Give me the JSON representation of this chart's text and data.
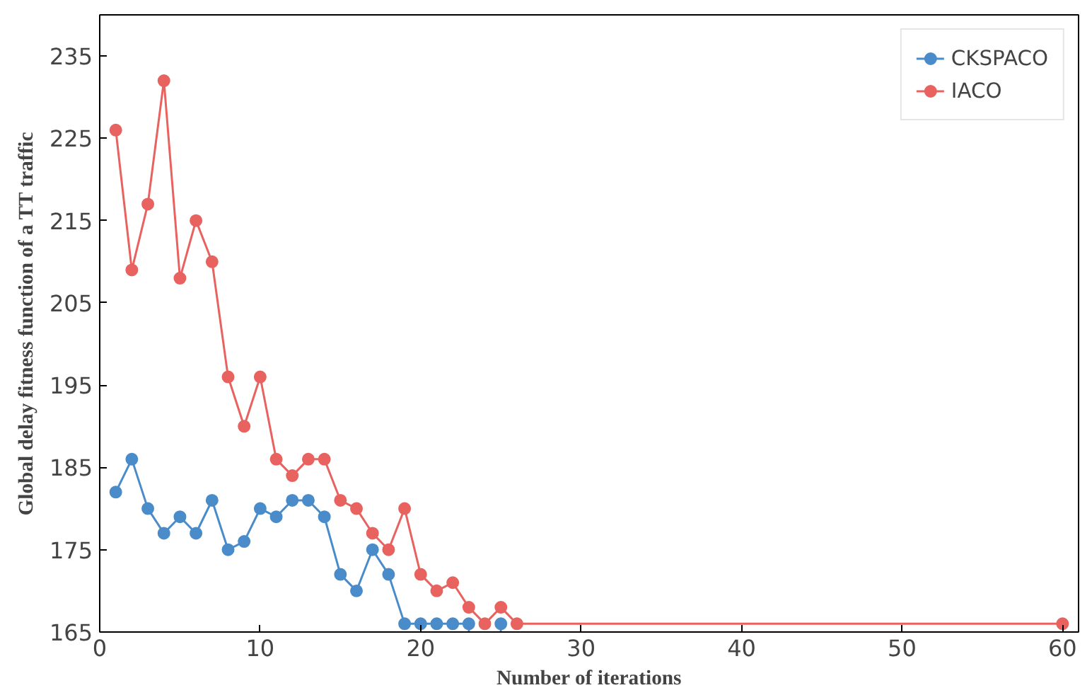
{
  "chart_data": {
    "type": "line",
    "xlabel": "Number of iterations",
    "ylabel": "Global delay fitness function of a TT traffic",
    "xlim": [
      0,
      61
    ],
    "ylim": [
      165,
      240
    ],
    "xticks": [
      0,
      10,
      20,
      30,
      40,
      50,
      60
    ],
    "yticks": [
      165,
      175,
      185,
      195,
      205,
      215,
      225,
      235
    ],
    "grid": false,
    "legend": "top right",
    "marker": "circle",
    "line_style": "solid",
    "series": [
      {
        "name": "CKSPACO",
        "color": "#4a8cc9",
        "x": [
          1,
          2,
          3,
          4,
          5,
          6,
          7,
          8,
          9,
          10,
          11,
          12,
          13,
          14,
          15,
          16,
          17,
          18,
          19,
          20,
          21,
          22,
          23,
          24,
          25
        ],
        "values": [
          182,
          186,
          180,
          177,
          179,
          177,
          181,
          175,
          176,
          180,
          179,
          181,
          181,
          179,
          172,
          170,
          175,
          172,
          166,
          166,
          166,
          166,
          166,
          null,
          166
        ]
      },
      {
        "name": "IACO",
        "color": "#e8625f",
        "x": [
          1,
          2,
          3,
          4,
          5,
          6,
          7,
          8,
          9,
          10,
          11,
          12,
          13,
          14,
          15,
          16,
          17,
          18,
          19,
          20,
          21,
          22,
          23,
          24,
          25,
          26,
          60
        ],
        "values": [
          226,
          209,
          217,
          232,
          208,
          215,
          210,
          196,
          190,
          196,
          186,
          184,
          186,
          186,
          181,
          180,
          177,
          175,
          180,
          172,
          170,
          171,
          168,
          166,
          168,
          166,
          166
        ]
      }
    ]
  }
}
